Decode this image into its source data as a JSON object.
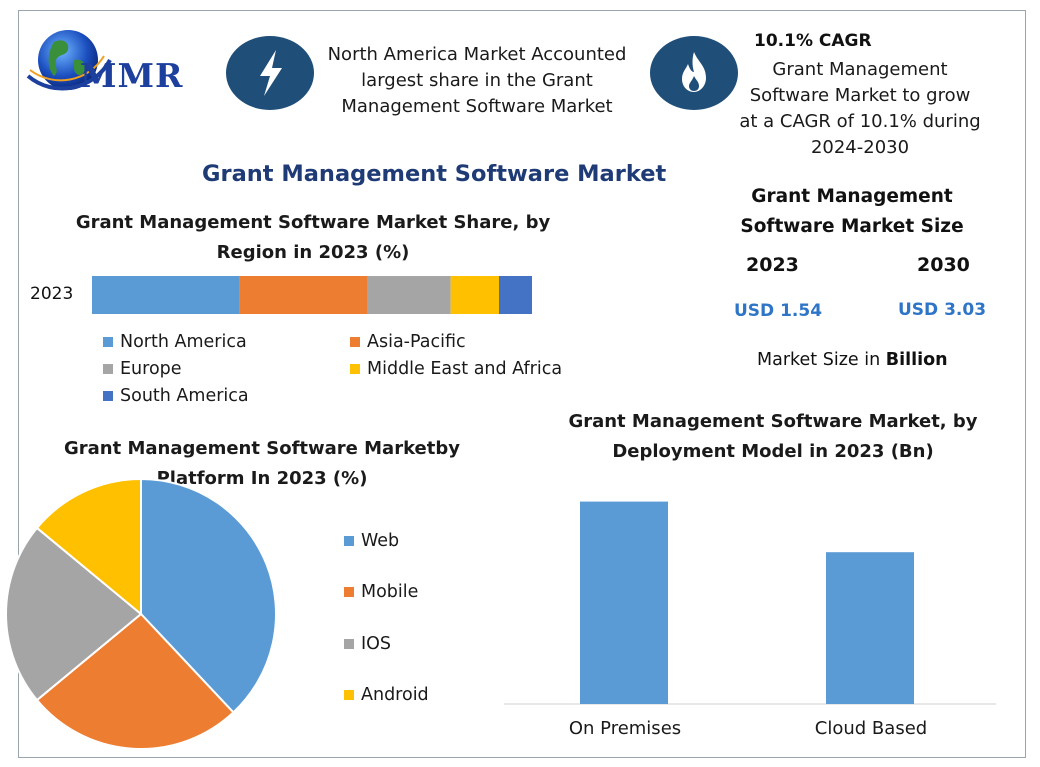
{
  "logo": {
    "text": "MMR"
  },
  "highlights": [
    {
      "icon": "lightning-icon",
      "text": "North America Market Accounted largest share in the Grant Management Software Market"
    },
    {
      "icon": "flame-icon",
      "title": "10.1% CAGR",
      "text": "Grant Management Software Market to grow at a CAGR of 10.1% during 2024-2030"
    }
  ],
  "main_title": "Grant Management Software Market",
  "market_size": {
    "title": "Grant Management Software Market Size",
    "year_start": "2023",
    "year_end": "2030",
    "value_start": "USD 1.54",
    "value_end": "USD 3.03",
    "unit_prefix": "Market Size in ",
    "unit_bold": "Billion"
  },
  "colors": {
    "blue": "#5b9bd5",
    "orange": "#ed7d31",
    "gray": "#a5a5a5",
    "yellow": "#ffc000",
    "darkblue": "#4472c4",
    "icon_bg": "#1f4e79"
  },
  "chart_data": [
    {
      "type": "bar",
      "orientation": "horizontal-stacked",
      "title": "Grant Management Software Market Share, by Region in 2023 (%)",
      "categories": [
        "2023"
      ],
      "series": [
        {
          "name": "North America",
          "values": [
            33.5
          ]
        },
        {
          "name": "Asia-Pacific",
          "values": [
            29
          ]
        },
        {
          "name": "Europe",
          "values": [
            19
          ]
        },
        {
          "name": "Middle East and Africa",
          "values": [
            11
          ]
        },
        {
          "name": "South America",
          "values": [
            7.5
          ]
        }
      ],
      "legend": "bottom"
    },
    {
      "type": "pie",
      "title": "Grant Management Software Marketby Platform In 2023 (%)",
      "labels": [
        "Web",
        "Mobile",
        "IOS",
        "Android"
      ],
      "values": [
        38,
        26,
        22,
        14
      ],
      "legend": "right"
    },
    {
      "type": "bar",
      "title": "Grant Management Software Market, by Deployment Model in 2023 (Bn)",
      "categories": [
        "On Premises",
        "Cloud Based"
      ],
      "values": [
        0.88,
        0.66
      ],
      "ylim": [
        0,
        1
      ]
    }
  ]
}
